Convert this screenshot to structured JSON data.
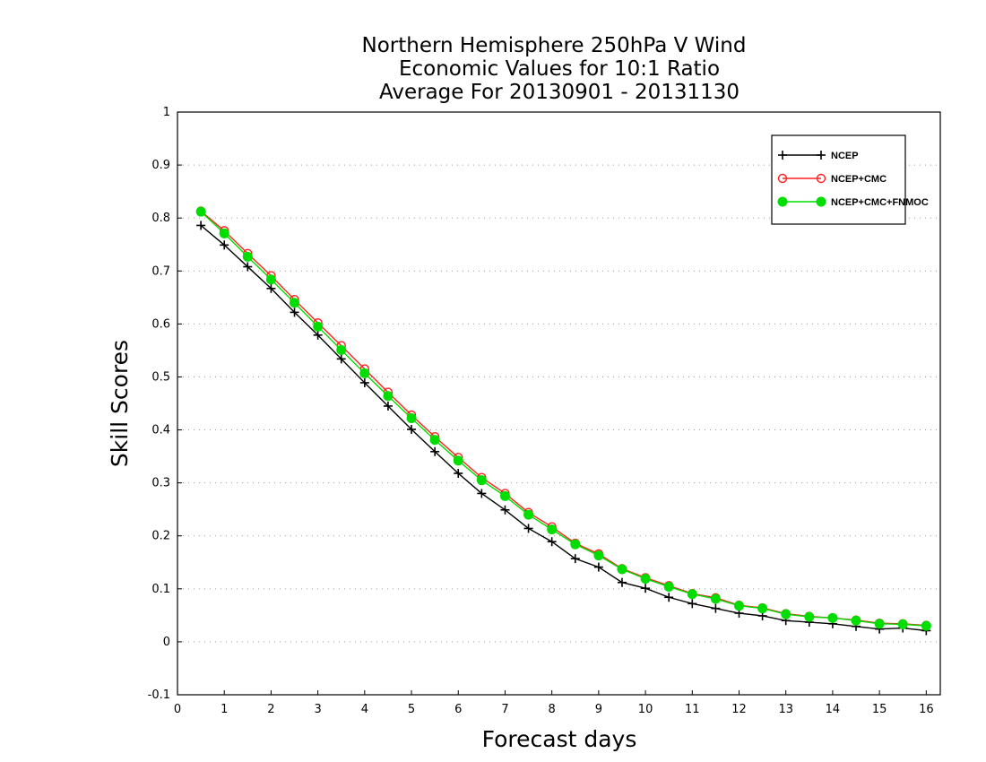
{
  "chart_data": {
    "type": "line",
    "title_lines": [
      "Northern Hemisphere 250hPa V Wind",
      "Economic Values for 10:1 Ratio",
      "Average For 20130901 - 20131130"
    ],
    "xlabel": "Forecast days",
    "ylabel": "Skill Scores",
    "xlim": [
      0,
      16.3
    ],
    "ylim": [
      -0.1,
      1
    ],
    "x_ticks": [
      0,
      1,
      2,
      3,
      4,
      5,
      6,
      7,
      8,
      9,
      10,
      11,
      12,
      13,
      14,
      15,
      16
    ],
    "x_tick_labels": [
      "0",
      "1",
      "2",
      "3",
      "4",
      "5",
      "6",
      "7",
      "8",
      "9",
      "10",
      "11",
      "12",
      "13",
      "14",
      "15",
      "16"
    ],
    "y_ticks": [
      -0.1,
      0,
      0.1,
      0.2,
      0.3,
      0.4,
      0.5,
      0.6,
      0.7,
      0.8,
      0.9,
      1
    ],
    "y_tick_labels": [
      "-0.1",
      "0",
      "0.1",
      "0.2",
      "0.3",
      "0.4",
      "0.5",
      "0.6",
      "0.7",
      "0.8",
      "0.9",
      "1"
    ],
    "grid": true,
    "legend_position": "top-right",
    "x": [
      0.5,
      1,
      1.5,
      2,
      2.5,
      3,
      3.5,
      4,
      4.5,
      5,
      5.5,
      6,
      6.5,
      7,
      7.5,
      8,
      8.5,
      9,
      9.5,
      10,
      10.5,
      11,
      11.5,
      12,
      12.5,
      13,
      13.5,
      14,
      14.5,
      15,
      15.5,
      16
    ],
    "series": [
      {
        "name": "NCEP",
        "color": "#000000",
        "marker": "plus",
        "values": [
          0.786,
          0.749,
          0.708,
          0.667,
          0.622,
          0.579,
          0.534,
          0.489,
          0.445,
          0.401,
          0.359,
          0.318,
          0.28,
          0.249,
          0.214,
          0.189,
          0.157,
          0.141,
          0.112,
          0.101,
          0.084,
          0.072,
          0.063,
          0.054,
          0.049,
          0.04,
          0.037,
          0.034,
          0.029,
          0.024,
          0.026,
          0.021
        ]
      },
      {
        "name": "NCEP+CMC",
        "color": "#ff2020",
        "marker": "open-circle",
        "values": [
          0.813,
          0.776,
          0.733,
          0.691,
          0.646,
          0.602,
          0.559,
          0.515,
          0.471,
          0.428,
          0.387,
          0.348,
          0.31,
          0.28,
          0.244,
          0.217,
          0.186,
          0.166,
          0.138,
          0.121,
          0.106,
          0.091,
          0.083,
          0.069,
          0.064,
          0.053,
          0.048,
          0.045,
          0.041,
          0.035,
          0.034,
          0.031
        ]
      },
      {
        "name": "NCEP+CMC+FNMOC",
        "color": "#00dd00",
        "marker": "filled-circle",
        "values": [
          0.812,
          0.771,
          0.727,
          0.684,
          0.64,
          0.595,
          0.551,
          0.507,
          0.464,
          0.422,
          0.381,
          0.342,
          0.305,
          0.275,
          0.24,
          0.212,
          0.184,
          0.163,
          0.137,
          0.119,
          0.104,
          0.09,
          0.081,
          0.068,
          0.063,
          0.052,
          0.047,
          0.045,
          0.04,
          0.034,
          0.033,
          0.03
        ]
      }
    ]
  }
}
